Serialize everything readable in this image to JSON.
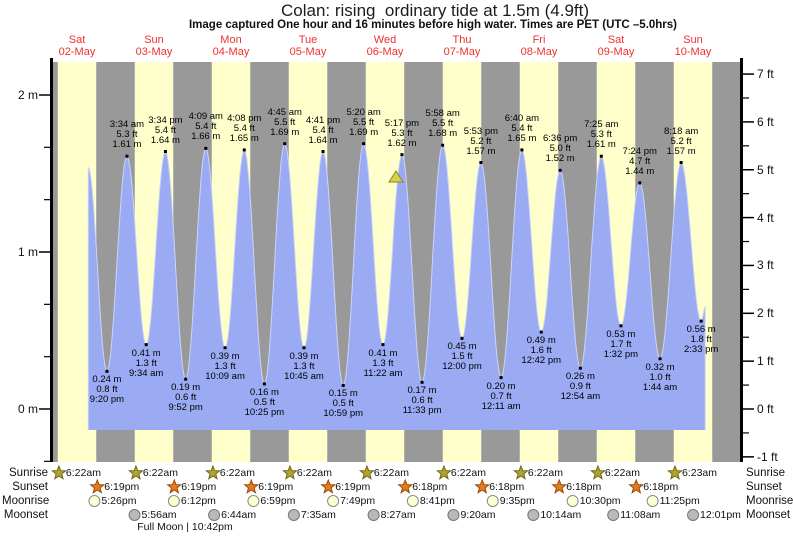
{
  "title": "Colan: rising  ordinary tide at 1.5m (4.9ft)",
  "subtitle": "Image captured One hour and 16 minutes before high water. Times are PET (UTC –5.0hrs)",
  "chart_data": {
    "type": "area",
    "title": "Colan tide heights 02-May to 10-May",
    "days": [
      {
        "name": "Sat",
        "date": "02-May"
      },
      {
        "name": "Sun",
        "date": "03-May"
      },
      {
        "name": "Mon",
        "date": "04-May"
      },
      {
        "name": "Tue",
        "date": "05-May"
      },
      {
        "name": "Wed",
        "date": "06-May"
      },
      {
        "name": "Thu",
        "date": "07-May"
      },
      {
        "name": "Fri",
        "date": "08-May"
      },
      {
        "name": "Sat",
        "date": "09-May"
      },
      {
        "name": "Sun",
        "date": "10-May"
      }
    ],
    "left_axis": {
      "unit": "m",
      "labels": [
        "2 m",
        "1 m",
        "0 m"
      ],
      "values": [
        2,
        1,
        0
      ]
    },
    "right_axis": {
      "unit": "ft",
      "labels": [
        "7 ft",
        "6 ft",
        "5 ft",
        "4 ft",
        "3 ft",
        "2 ft",
        "1 ft",
        "0 ft",
        "-1 ft"
      ],
      "values": [
        7,
        6,
        5,
        4,
        3,
        2,
        1,
        0,
        -1
      ]
    },
    "high_tides": [
      {
        "day": 1,
        "time": "3:34 am",
        "ft": "5.3 ft",
        "m": "1.61 m"
      },
      {
        "day": 1,
        "time": "3:34 pm",
        "ft": "5.4 ft",
        "m": "1.64 m"
      },
      {
        "day": 2,
        "time": "4:09 am",
        "ft": "5.4 ft",
        "m": "1.66 m"
      },
      {
        "day": 2,
        "time": "4:08 pm",
        "ft": "5.4 ft",
        "m": "1.65 m"
      },
      {
        "day": 3,
        "time": "4:45 am",
        "ft": "5.5 ft",
        "m": "1.69 m"
      },
      {
        "day": 3,
        "time": "4:41 pm",
        "ft": "5.4 ft",
        "m": "1.64 m"
      },
      {
        "day": 4,
        "time": "5:20 am",
        "ft": "5.5 ft",
        "m": "1.69 m"
      },
      {
        "day": 4,
        "time": "5:17 pm",
        "ft": "5.3 ft",
        "m": "1.62 m"
      },
      {
        "day": 5,
        "time": "5:58 am",
        "ft": "5.5 ft",
        "m": "1.68 m"
      },
      {
        "day": 5,
        "time": "5:53 pm",
        "ft": "5.2 ft",
        "m": "1.57 m"
      },
      {
        "day": 6,
        "time": "6:40 am",
        "ft": "5.4 ft",
        "m": "1.65 m"
      },
      {
        "day": 6,
        "time": "6:36 pm",
        "ft": "5.0 ft",
        "m": "1.52 m"
      },
      {
        "day": 7,
        "time": "7:25 am",
        "ft": "5.3 ft",
        "m": "1.61 m"
      },
      {
        "day": 7,
        "time": "7:24 pm",
        "ft": "4.7 ft",
        "m": "1.44 m"
      },
      {
        "day": 8,
        "time": "8:18 am",
        "ft": "5.2 ft",
        "m": "1.57 m"
      }
    ],
    "low_tides": [
      {
        "day": 0,
        "time": "9:20 pm",
        "ft": "0.8 ft",
        "m": "0.24 m"
      },
      {
        "day": 1,
        "time": "9:34 am",
        "ft": "1.3 ft",
        "m": "0.41 m"
      },
      {
        "day": 1,
        "time": "9:52 pm",
        "ft": "0.6 ft",
        "m": "0.19 m"
      },
      {
        "day": 2,
        "time": "10:09 am",
        "ft": "1.3 ft",
        "m": "0.39 m"
      },
      {
        "day": 2,
        "time": "10:25 pm",
        "ft": "0.5 ft",
        "m": "0.16 m"
      },
      {
        "day": 3,
        "time": "10:45 am",
        "ft": "1.3 ft",
        "m": "0.39 m"
      },
      {
        "day": 3,
        "time": "10:59 pm",
        "ft": "0.5 ft",
        "m": "0.15 m"
      },
      {
        "day": 4,
        "time": "11:22 am",
        "ft": "1.3 ft",
        "m": "0.41 m"
      },
      {
        "day": 4,
        "time": "11:33 pm",
        "ft": "0.6 ft",
        "m": "0.17 m"
      },
      {
        "day": 5,
        "time": "12:00 pm",
        "ft": "1.5 ft",
        "m": "0.45 m"
      },
      {
        "day": 6,
        "time": "12:11 am",
        "ft": "0.7 ft",
        "m": "0.20 m"
      },
      {
        "day": 6,
        "time": "12:42 pm",
        "ft": "1.6 ft",
        "m": "0.49 m"
      },
      {
        "day": 7,
        "time": "12:54 am",
        "ft": "0.9 ft",
        "m": "0.26 m"
      },
      {
        "day": 7,
        "time": "1:32 pm",
        "ft": "1.7 ft",
        "m": "0.53 m"
      },
      {
        "day": 8,
        "time": "1:44 am",
        "ft": "1.0 ft",
        "m": "0.32 m"
      },
      {
        "day": 8,
        "time": "2:33 pm",
        "ft": "1.8 ft",
        "m": "0.56 m"
      }
    ]
  },
  "capture_marker": {
    "shape": "triangle",
    "color": "#d9cf4a"
  },
  "legend": {
    "row_labels": [
      "Sunrise",
      "Sunset",
      "Moonrise",
      "Moonset"
    ],
    "sunrise": [
      {
        "day": 0,
        "time": "6:22am"
      },
      {
        "day": 1,
        "time": "6:22am"
      },
      {
        "day": 2,
        "time": "6:22am"
      },
      {
        "day": 3,
        "time": "6:22am"
      },
      {
        "day": 4,
        "time": "6:22am"
      },
      {
        "day": 5,
        "time": "6:22am"
      },
      {
        "day": 6,
        "time": "6:22am"
      },
      {
        "day": 7,
        "time": "6:22am"
      },
      {
        "day": 8,
        "time": "6:23am"
      }
    ],
    "sunset": [
      {
        "day": 0,
        "time": "6:19pm"
      },
      {
        "day": 1,
        "time": "6:19pm"
      },
      {
        "day": 2,
        "time": "6:19pm"
      },
      {
        "day": 3,
        "time": "6:19pm"
      },
      {
        "day": 4,
        "time": "6:18pm"
      },
      {
        "day": 5,
        "time": "6:18pm"
      },
      {
        "day": 6,
        "time": "6:18pm"
      },
      {
        "day": 7,
        "time": "6:18pm"
      }
    ],
    "moonrise": [
      {
        "day": 0,
        "time": "5:26pm"
      },
      {
        "day": 1,
        "time": "6:12pm"
      },
      {
        "day": 2,
        "time": "6:59pm"
      },
      {
        "day": 3,
        "time": "7:49pm"
      },
      {
        "day": 4,
        "time": "8:41pm"
      },
      {
        "day": 5,
        "time": "9:35pm"
      },
      {
        "day": 6,
        "time": "10:30pm"
      },
      {
        "day": 7,
        "time": "11:25pm"
      }
    ],
    "moonset": [
      {
        "day": 1,
        "time": "5:56am"
      },
      {
        "day": 2,
        "time": "6:44am"
      },
      {
        "day": 3,
        "time": "7:35am"
      },
      {
        "day": 4,
        "time": "8:27am"
      },
      {
        "day": 5,
        "time": "9:20am"
      },
      {
        "day": 6,
        "time": "10:14am"
      },
      {
        "day": 7,
        "time": "11:08am"
      },
      {
        "day": 8,
        "time": "12:01pm"
      }
    ],
    "full_moon": "Full Moon | 10:42pm"
  },
  "colors": {
    "day_band": "#ffffcc",
    "night_band": "#999999",
    "tide_fill": "#9aabf3",
    "tide_outline": "#ccd4f8",
    "date_text": "#f03030",
    "sunrise_star": "#b3a42e",
    "sunset_star": "#e07d1e",
    "moonrise_circle": "#ffffd6",
    "moonset_circle": "#b9b9b9"
  }
}
